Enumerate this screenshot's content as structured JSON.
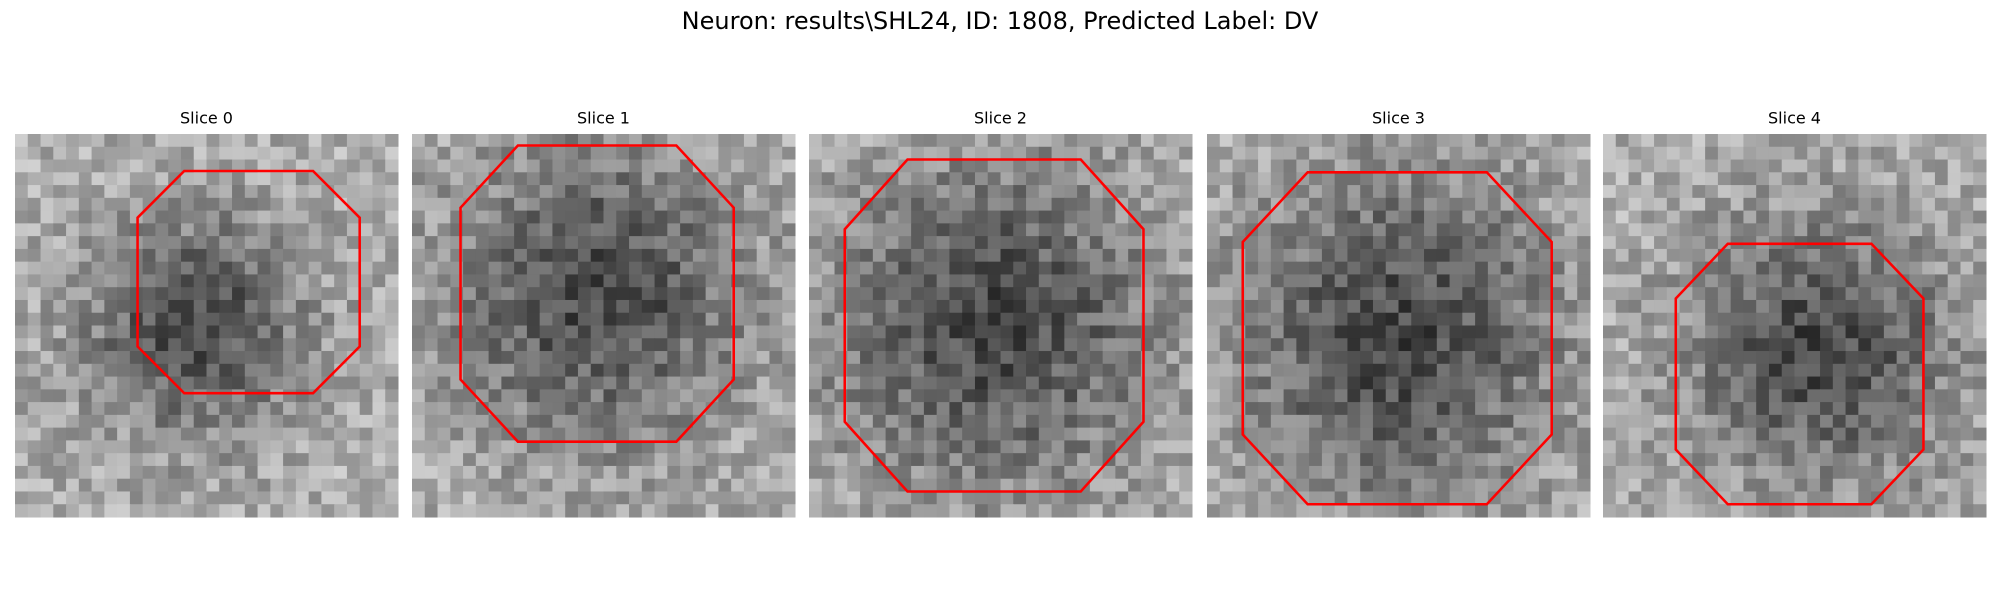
{
  "title": "Neuron: results\\SHL24, ID: 1808, Predicted Label: DV",
  "panels": [
    {
      "title": "Slice 0"
    },
    {
      "title": "Slice 1"
    },
    {
      "title": "Slice 2"
    },
    {
      "title": "Slice 3"
    },
    {
      "title": "Slice 4"
    }
  ]
}
